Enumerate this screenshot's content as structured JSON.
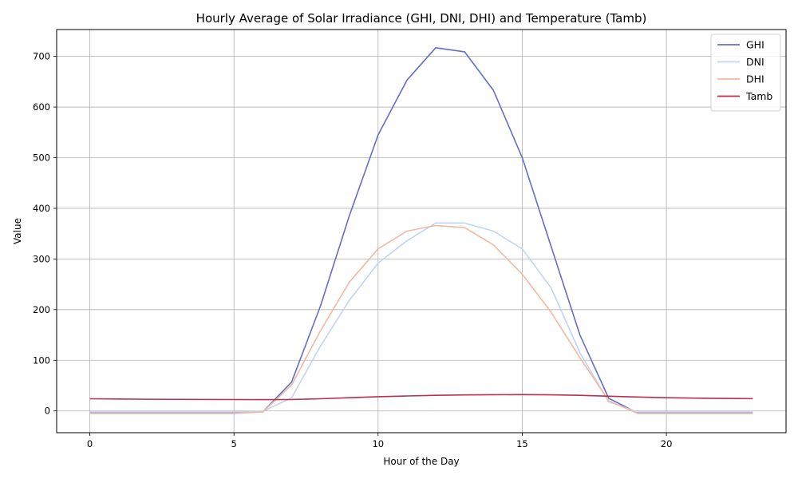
{
  "chart_data": {
    "type": "line",
    "title": "Hourly Average of Solar Irradiance (GHI, DNI, DHI) and Temperature (Tamb)",
    "xlabel": "Hour of the Day",
    "ylabel": "Value",
    "xlim": [
      -1.15,
      24.15
    ],
    "ylim": [
      -43,
      753
    ],
    "x_ticks": [
      0,
      5,
      10,
      15,
      20
    ],
    "y_ticks": [
      0,
      100,
      200,
      300,
      400,
      500,
      600,
      700
    ],
    "grid": true,
    "legend_position": "top-right",
    "x": [
      0,
      1,
      2,
      3,
      4,
      5,
      6,
      7,
      8,
      9,
      10,
      11,
      12,
      13,
      14,
      15,
      16,
      17,
      18,
      19,
      20,
      21,
      22,
      23
    ],
    "series": [
      {
        "name": "GHI",
        "color": "#6070c8",
        "values": [
          -4,
          -4,
          -4,
          -4,
          -4,
          -4,
          -2,
          57,
          207,
          385,
          545,
          653,
          717,
          709,
          633,
          500,
          325,
          150,
          25,
          -4,
          -4,
          -4,
          -4,
          -4
        ]
      },
      {
        "name": "DNI",
        "color": "#c0d4f5",
        "values": [
          -2,
          -2,
          -2,
          -2,
          -2,
          -2,
          -1,
          26,
          128,
          218,
          292,
          336,
          371,
          371,
          355,
          320,
          243,
          115,
          18,
          -2,
          -2,
          -2,
          -2,
          -2
        ]
      },
      {
        "name": "DHI",
        "color": "#f2b9a2",
        "values": [
          -5,
          -5,
          -5,
          -5,
          -5,
          -5,
          -2,
          51,
          158,
          254,
          320,
          355,
          366,
          362,
          328,
          270,
          195,
          105,
          20,
          -5,
          -5,
          -5,
          -5,
          -5
        ]
      },
      {
        "name": "Tamb",
        "color": "#b8304f",
        "values": [
          24,
          23.5,
          23,
          22.8,
          22.6,
          22.4,
          22.3,
          22.5,
          24,
          26,
          28,
          29.5,
          30.8,
          31.6,
          32,
          32.1,
          31.7,
          30.8,
          29,
          27.5,
          26,
          25.2,
          24.6,
          24.2
        ]
      }
    ]
  }
}
